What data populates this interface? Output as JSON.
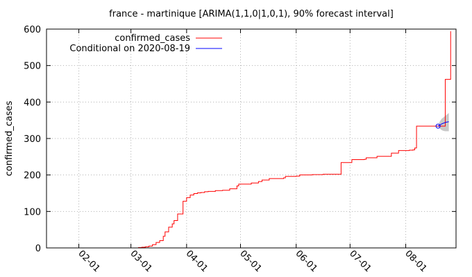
{
  "chart_data": {
    "type": "line",
    "title": "france - martinique [ARIMA(1,1,0|1,0,1), 90% forecast interval]",
    "ylabel": "confirmed_cases",
    "xlabel": "",
    "ylim": [
      0,
      600
    ],
    "yticks": [
      0,
      100,
      200,
      300,
      400,
      500,
      600
    ],
    "x_domain": [
      "2020-01-14",
      "2020-08-29"
    ],
    "xticks": [
      "2020-02-01",
      "2020-03-01",
      "2020-04-01",
      "2020-05-01",
      "2020-06-01",
      "2020-07-01",
      "2020-08-01"
    ],
    "xtick_labels": [
      "02-01",
      "03-01",
      "04-01",
      "05-01",
      "06-01",
      "07-01",
      "08-01"
    ],
    "grid": true,
    "legend_position": "top-left",
    "series": [
      {
        "name": "confirmed_cases",
        "color": "#ff0000",
        "step": true,
        "points": [
          [
            "2020-03-05",
            1
          ],
          [
            "2020-03-07",
            2
          ],
          [
            "2020-03-09",
            3
          ],
          [
            "2020-03-11",
            5
          ],
          [
            "2020-03-13",
            9
          ],
          [
            "2020-03-15",
            15
          ],
          [
            "2020-03-17",
            20
          ],
          [
            "2020-03-19",
            32
          ],
          [
            "2020-03-20",
            44
          ],
          [
            "2020-03-22",
            57
          ],
          [
            "2020-03-24",
            66
          ],
          [
            "2020-03-25",
            75
          ],
          [
            "2020-03-27",
            93
          ],
          [
            "2020-03-29",
            93
          ],
          [
            "2020-03-30",
            128
          ],
          [
            "2020-04-01",
            138
          ],
          [
            "2020-04-03",
            145
          ],
          [
            "2020-04-05",
            149
          ],
          [
            "2020-04-07",
            151
          ],
          [
            "2020-04-09",
            152
          ],
          [
            "2020-04-11",
            154
          ],
          [
            "2020-04-13",
            155
          ],
          [
            "2020-04-15",
            155
          ],
          [
            "2020-04-17",
            157
          ],
          [
            "2020-04-21",
            158
          ],
          [
            "2020-04-25",
            162
          ],
          [
            "2020-04-29",
            170
          ],
          [
            "2020-04-30",
            175
          ],
          [
            "2020-05-04",
            175
          ],
          [
            "2020-05-07",
            178
          ],
          [
            "2020-05-11",
            182
          ],
          [
            "2020-05-13",
            186
          ],
          [
            "2020-05-17",
            190
          ],
          [
            "2020-05-25",
            192
          ],
          [
            "2020-05-26",
            196
          ],
          [
            "2020-06-01",
            197
          ],
          [
            "2020-06-03",
            200
          ],
          [
            "2020-06-07",
            200
          ],
          [
            "2020-06-10",
            201
          ],
          [
            "2020-06-16",
            202
          ],
          [
            "2020-06-24",
            202
          ],
          [
            "2020-06-26",
            234
          ],
          [
            "2020-07-02",
            242
          ],
          [
            "2020-07-09",
            243
          ],
          [
            "2020-07-10",
            247
          ],
          [
            "2020-07-16",
            251
          ],
          [
            "2020-07-24",
            260
          ],
          [
            "2020-07-28",
            267
          ],
          [
            "2020-08-03",
            268
          ],
          [
            "2020-08-05",
            269
          ],
          [
            "2020-08-06",
            274
          ],
          [
            "2020-08-07",
            334
          ],
          [
            "2020-08-18",
            334
          ],
          [
            "2020-08-19",
            334
          ],
          [
            "2020-08-22",
            334
          ],
          [
            "2020-08-23",
            462
          ],
          [
            "2020-08-25",
            462
          ],
          [
            "2020-08-26",
            594
          ]
        ]
      },
      {
        "name": "Conditional on 2020-08-19",
        "color": "#0000ff",
        "step": false,
        "points": [
          [
            "2020-08-19",
            334
          ],
          [
            "2020-08-20",
            337
          ],
          [
            "2020-08-21",
            340
          ],
          [
            "2020-08-22",
            342
          ],
          [
            "2020-08-23",
            344
          ],
          [
            "2020-08-24",
            345
          ],
          [
            "2020-08-25",
            346
          ]
        ],
        "interval_color": "#c8c8c8",
        "interval": [
          [
            "2020-08-19",
            334,
            334
          ],
          [
            "2020-08-20",
            327,
            347
          ],
          [
            "2020-08-21",
            323,
            354
          ],
          [
            "2020-08-22",
            321,
            358
          ],
          [
            "2020-08-23",
            320,
            362
          ],
          [
            "2020-08-24",
            320,
            366
          ],
          [
            "2020-08-25",
            320,
            370
          ]
        ]
      }
    ]
  }
}
